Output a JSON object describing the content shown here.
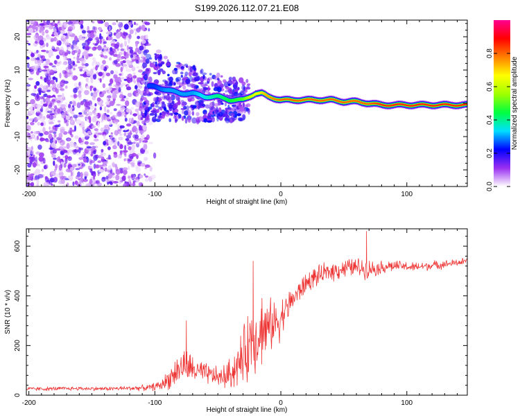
{
  "title": "S199.2026.112.07.21.E08",
  "chart_data": [
    {
      "type": "heatmap",
      "name": "spectrogram",
      "xlabel": "Height of straight line (km)",
      "ylabel": "Frequency (Hz)",
      "xlim": [
        -202,
        148
      ],
      "ylim": [
        -25,
        25
      ],
      "xticks": [
        -200,
        -100,
        0,
        100
      ],
      "yticks": [
        -20,
        -10,
        0,
        10,
        20
      ],
      "colorbar": {
        "label": "Normalized spectral amplitude",
        "range": [
          0,
          1
        ],
        "ticks": [
          0.0,
          0.2,
          0.4,
          0.6,
          0.8
        ],
        "colors": [
          "#ffffff",
          "#9a2ff0",
          "#0000ff",
          "#00e0ff",
          "#00ff40",
          "#a0ff00",
          "#ffff00",
          "#ff8000",
          "#ff0000",
          "#ff0090"
        ]
      },
      "ridge": {
        "x": [
          -100,
          -90,
          -80,
          -70,
          -60,
          -50,
          -40,
          -30,
          -25,
          -20,
          -15,
          -10,
          0,
          10,
          20,
          30,
          40,
          50,
          60,
          70,
          80,
          100,
          120,
          148
        ],
        "y": [
          5,
          4,
          3,
          3,
          2,
          2,
          1,
          1,
          2,
          3,
          3,
          2,
          1,
          1,
          1,
          1,
          1,
          0.5,
          0.5,
          0,
          -0.5,
          -0.5,
          -0.5,
          -0.5
        ],
        "amplitude": [
          0.25,
          0.3,
          0.3,
          0.3,
          0.35,
          0.4,
          0.45,
          0.5,
          0.6,
          0.65,
          0.7,
          0.75,
          0.8,
          0.8,
          0.8,
          0.8,
          0.8,
          0.8,
          0.8,
          0.8,
          0.85,
          0.85,
          0.85,
          0.85
        ]
      },
      "noise_extent_x": [
        -202,
        -105
      ]
    },
    {
      "type": "line",
      "name": "snr",
      "xlabel": "Height of straight line (km)",
      "ylabel": "SNR (10 * v/v)",
      "xlim": [
        -202,
        148
      ],
      "ylim": [
        0,
        670
      ],
      "xticks": [
        -200,
        -100,
        0,
        100
      ],
      "yticks": [
        0,
        200,
        400,
        600
      ],
      "color": "#ee3333",
      "x": [
        -202,
        -180,
        -160,
        -140,
        -120,
        -105,
        -95,
        -88,
        -82,
        -77,
        -72,
        -66,
        -60,
        -54,
        -48,
        -42,
        -36,
        -30,
        -26,
        -22,
        -18,
        -14,
        -10,
        -6,
        -2,
        2,
        6,
        10,
        15,
        20,
        25,
        30,
        35,
        40,
        45,
        50,
        55,
        60,
        68,
        75,
        85,
        95,
        105,
        115,
        125,
        135,
        148
      ],
      "values": [
        25,
        26,
        27,
        26,
        28,
        30,
        40,
        70,
        100,
        120,
        110,
        95,
        85,
        80,
        70,
        80,
        110,
        150,
        200,
        240,
        240,
        260,
        270,
        290,
        300,
        330,
        360,
        390,
        420,
        450,
        470,
        480,
        490,
        500,
        505,
        510,
        515,
        515,
        510,
        510,
        520,
        520,
        515,
        520,
        525,
        530,
        540
      ],
      "noise": [
        8,
        8,
        8,
        8,
        10,
        12,
        20,
        45,
        60,
        70,
        60,
        50,
        45,
        40,
        40,
        60,
        80,
        110,
        150,
        150,
        140,
        130,
        110,
        100,
        90,
        70,
        60,
        50,
        45,
        45,
        40,
        40,
        40,
        40,
        40,
        40,
        35,
        40,
        40,
        30,
        25,
        20,
        20,
        18,
        18,
        15,
        15
      ],
      "peaks": [
        {
          "x": -75,
          "value": 300
        },
        {
          "x": -22,
          "value": 540
        },
        {
          "x": -15,
          "value": 390
        },
        {
          "x": 68,
          "value": 660
        }
      ]
    }
  ]
}
